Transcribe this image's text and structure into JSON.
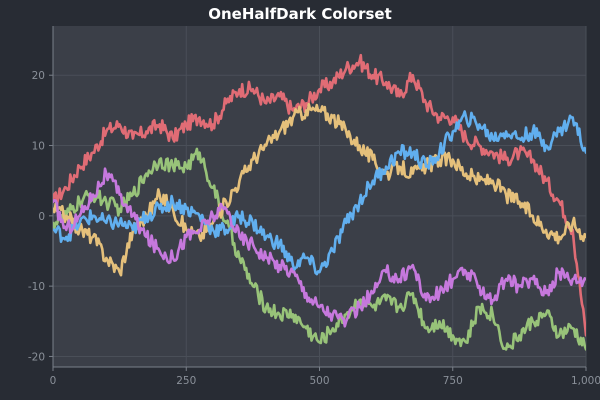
{
  "chart_data": {
    "type": "line",
    "title": "OneHalfDark Colorset",
    "xlabel": "",
    "ylabel": "",
    "xlim": [
      0,
      1000
    ],
    "ylim": [
      -21.5,
      27
    ],
    "x_ticks": [
      0,
      250,
      500,
      750,
      1000
    ],
    "x_tick_labels": [
      "0",
      "250",
      "500",
      "750",
      "1,000"
    ],
    "y_ticks": [
      -20,
      -10,
      0,
      10,
      20
    ],
    "y_tick_labels": [
      "-20",
      "-10",
      "0",
      "10",
      "20"
    ],
    "grid": true,
    "colors": {
      "background": "#282c34",
      "plot_background": "#3b3f48",
      "grid": "#4a4f58",
      "axis": "#7a808a",
      "text": "#ffffff",
      "tick_text": "#8a9099"
    },
    "series": [
      {
        "color": "#e06c75",
        "points": [
          [
            0,
            2
          ],
          [
            25,
            4
          ],
          [
            50,
            7
          ],
          [
            75,
            9
          ],
          [
            100,
            12
          ],
          [
            125,
            13
          ],
          [
            150,
            11
          ],
          [
            175,
            12
          ],
          [
            200,
            13
          ],
          [
            225,
            11
          ],
          [
            250,
            13
          ],
          [
            275,
            14
          ],
          [
            300,
            13
          ],
          [
            325,
            16
          ],
          [
            350,
            18
          ],
          [
            375,
            18
          ],
          [
            400,
            16
          ],
          [
            425,
            17
          ],
          [
            450,
            15
          ],
          [
            475,
            16
          ],
          [
            500,
            18
          ],
          [
            525,
            19
          ],
          [
            550,
            21
          ],
          [
            575,
            22
          ],
          [
            600,
            20
          ],
          [
            625,
            19
          ],
          [
            650,
            17
          ],
          [
            675,
            20
          ],
          [
            700,
            16
          ],
          [
            725,
            14
          ],
          [
            750,
            14
          ],
          [
            775,
            11
          ],
          [
            800,
            10
          ],
          [
            825,
            9
          ],
          [
            850,
            8
          ],
          [
            875,
            9
          ],
          [
            900,
            8
          ],
          [
            925,
            5
          ],
          [
            950,
            2
          ],
          [
            975,
            -2
          ],
          [
            1000,
            -17
          ]
        ]
      },
      {
        "color": "#98c379",
        "points": [
          [
            0,
            -1
          ],
          [
            25,
            0
          ],
          [
            50,
            2
          ],
          [
            75,
            3
          ],
          [
            100,
            2
          ],
          [
            125,
            1
          ],
          [
            150,
            3
          ],
          [
            175,
            6
          ],
          [
            200,
            8
          ],
          [
            225,
            7
          ],
          [
            250,
            7
          ],
          [
            275,
            9
          ],
          [
            300,
            4
          ],
          [
            325,
            -1
          ],
          [
            350,
            -6
          ],
          [
            375,
            -10
          ],
          [
            400,
            -13
          ],
          [
            425,
            -14
          ],
          [
            450,
            -14
          ],
          [
            475,
            -16
          ],
          [
            500,
            -18
          ],
          [
            525,
            -16
          ],
          [
            550,
            -14
          ],
          [
            575,
            -12
          ],
          [
            600,
            -13
          ],
          [
            625,
            -12
          ],
          [
            650,
            -13
          ],
          [
            675,
            -11
          ],
          [
            700,
            -16
          ],
          [
            725,
            -15
          ],
          [
            750,
            -17
          ],
          [
            775,
            -18
          ],
          [
            800,
            -13
          ],
          [
            825,
            -14
          ],
          [
            850,
            -19
          ],
          [
            875,
            -17
          ],
          [
            900,
            -15
          ],
          [
            925,
            -14
          ],
          [
            950,
            -17
          ],
          [
            975,
            -16
          ],
          [
            1000,
            -19
          ]
        ]
      },
      {
        "color": "#e5c07b",
        "points": [
          [
            0,
            1
          ],
          [
            25,
            0
          ],
          [
            50,
            -2
          ],
          [
            75,
            -3
          ],
          [
            100,
            -6
          ],
          [
            125,
            -8
          ],
          [
            150,
            -2
          ],
          [
            175,
            0
          ],
          [
            200,
            3
          ],
          [
            225,
            1
          ],
          [
            250,
            -2
          ],
          [
            275,
            -3
          ],
          [
            300,
            -1
          ],
          [
            325,
            2
          ],
          [
            350,
            5
          ],
          [
            375,
            8
          ],
          [
            400,
            10
          ],
          [
            425,
            12
          ],
          [
            450,
            14
          ],
          [
            475,
            15
          ],
          [
            500,
            15
          ],
          [
            525,
            14
          ],
          [
            550,
            12
          ],
          [
            575,
            10
          ],
          [
            600,
            8
          ],
          [
            625,
            6
          ],
          [
            650,
            7
          ],
          [
            675,
            6
          ],
          [
            700,
            7
          ],
          [
            725,
            8
          ],
          [
            750,
            8
          ],
          [
            775,
            6
          ],
          [
            800,
            5
          ],
          [
            825,
            5
          ],
          [
            850,
            3
          ],
          [
            875,
            2
          ],
          [
            900,
            0
          ],
          [
            925,
            -2
          ],
          [
            950,
            -3
          ],
          [
            975,
            -1
          ],
          [
            1000,
            -3
          ]
        ]
      },
      {
        "color": "#61afef",
        "points": [
          [
            0,
            -2
          ],
          [
            25,
            -3
          ],
          [
            50,
            -1
          ],
          [
            75,
            0
          ],
          [
            100,
            -1
          ],
          [
            125,
            -1
          ],
          [
            150,
            -2
          ],
          [
            175,
            0
          ],
          [
            200,
            1
          ],
          [
            225,
            2
          ],
          [
            250,
            1
          ],
          [
            275,
            0
          ],
          [
            300,
            -2
          ],
          [
            325,
            -2
          ],
          [
            350,
            0
          ],
          [
            375,
            -1
          ],
          [
            400,
            -3
          ],
          [
            425,
            -4
          ],
          [
            450,
            -7
          ],
          [
            475,
            -6
          ],
          [
            500,
            -8
          ],
          [
            525,
            -5
          ],
          [
            550,
            -1
          ],
          [
            575,
            2
          ],
          [
            600,
            5
          ],
          [
            625,
            7
          ],
          [
            650,
            9
          ],
          [
            675,
            9
          ],
          [
            700,
            7
          ],
          [
            725,
            9
          ],
          [
            750,
            12
          ],
          [
            775,
            14
          ],
          [
            800,
            13
          ],
          [
            825,
            11
          ],
          [
            850,
            12
          ],
          [
            875,
            11
          ],
          [
            900,
            12
          ],
          [
            925,
            10
          ],
          [
            950,
            12
          ],
          [
            975,
            14
          ],
          [
            1000,
            9
          ]
        ]
      },
      {
        "color": "#c678dd",
        "points": [
          [
            0,
            2
          ],
          [
            25,
            -2
          ],
          [
            50,
            0
          ],
          [
            75,
            3
          ],
          [
            100,
            6
          ],
          [
            125,
            3
          ],
          [
            150,
            0
          ],
          [
            175,
            -3
          ],
          [
            200,
            -5
          ],
          [
            225,
            -6
          ],
          [
            250,
            -3
          ],
          [
            275,
            -2
          ],
          [
            300,
            0
          ],
          [
            325,
            1
          ],
          [
            350,
            -3
          ],
          [
            375,
            -4
          ],
          [
            400,
            -6
          ],
          [
            425,
            -7
          ],
          [
            450,
            -8
          ],
          [
            475,
            -11
          ],
          [
            500,
            -13
          ],
          [
            525,
            -14
          ],
          [
            550,
            -15
          ],
          [
            575,
            -13
          ],
          [
            600,
            -11
          ],
          [
            625,
            -8
          ],
          [
            650,
            -9
          ],
          [
            675,
            -7
          ],
          [
            700,
            -12
          ],
          [
            725,
            -11
          ],
          [
            750,
            -9
          ],
          [
            775,
            -8
          ],
          [
            800,
            -10
          ],
          [
            825,
            -12
          ],
          [
            850,
            -9
          ],
          [
            875,
            -10
          ],
          [
            900,
            -9
          ],
          [
            925,
            -11
          ],
          [
            950,
            -8
          ],
          [
            975,
            -9
          ],
          [
            1000,
            -9
          ]
        ]
      }
    ]
  }
}
